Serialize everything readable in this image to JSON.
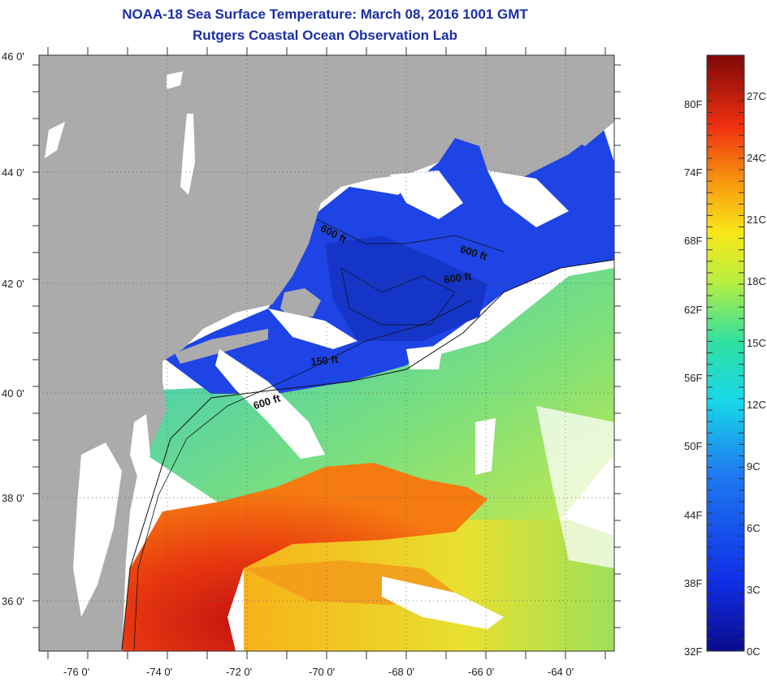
{
  "header": {
    "title": "NOAA-18 Sea Surface Temperature:  March 08, 2016 1001 GMT",
    "subtitle": "Rutgers Coastal Ocean Observation Lab"
  },
  "map": {
    "lon_ticks": [
      "-76 0'",
      "-74 0'",
      "-72 0'",
      "-70 0'",
      "-68 0'",
      "-66 0'",
      "-64 0'"
    ],
    "lat_ticks": [
      "46 0'",
      "44 0'",
      "42 0'",
      "40 0'",
      "38 0'",
      "36 0'"
    ],
    "contour_labels": [
      "600 ft",
      "600 ft",
      "600 ft",
      "150 ft",
      "600 ft"
    ],
    "colors": {
      "land": "#ababab",
      "cloud": "#ffffff",
      "cold": "#1a3fe0",
      "warm": "#e8360f"
    }
  },
  "colorbar": {
    "fahrenheit": [
      "80F",
      "74F",
      "68F",
      "62F",
      "56F",
      "50F",
      "44F",
      "38F",
      "32F"
    ],
    "celsius": [
      "27C",
      "24C",
      "21C",
      "18C",
      "15C",
      "12C",
      "9C",
      "6C",
      "3C",
      "0C"
    ]
  }
}
